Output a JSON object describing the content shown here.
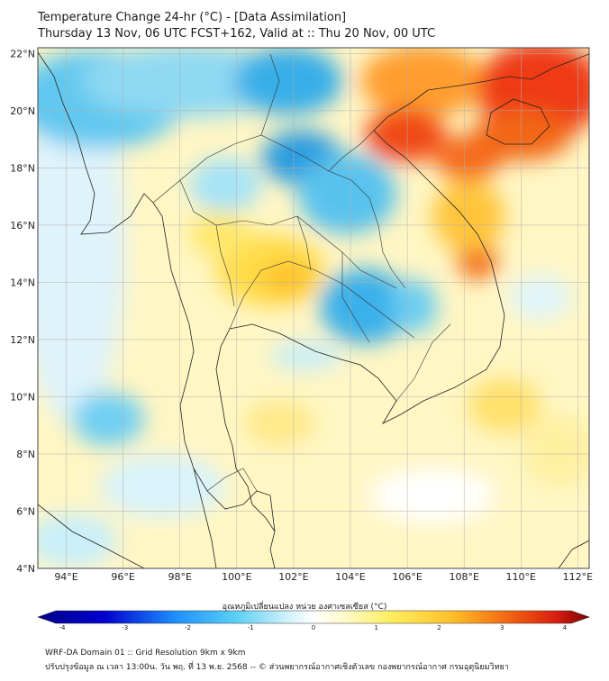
{
  "title_line1": "Temperature Change 24-hr (°C) - [Data Assimilation]",
  "title_line2": "Thursday 13 Nov, 06 UTC FCST+162, Valid at :: Thu 20 Nov, 00 UTC",
  "lat_labels": [
    "22°N",
    "20°N",
    "18°N",
    "16°N",
    "14°N",
    "12°N",
    "10°N",
    "8°N",
    "6°N",
    "4°N"
  ],
  "lon_labels": [
    "94°E",
    "96°E",
    "98°E",
    "100°E",
    "102°E",
    "104°E",
    "106°E",
    "108°E",
    "110°E",
    "112°E"
  ],
  "colorbar": {
    "label": "อุณหภูมิเปลี่ยนแปลง หน่วย องศาเซลเซียส (°C)",
    "ticks": [
      "-4",
      "-3",
      "-2",
      "-1",
      "0",
      "1",
      "2",
      "3",
      "4"
    ],
    "range": [
      -4,
      4
    ]
  },
  "footer_line1": "WRF-DA Domain 01 :: Grid Resolution 9km x 9km",
  "footer_line2": "ปรับปรุงข้อมูล ณ เวลา 13:00น. วัน พฤ. ที่ 13 พ.ย. 2568 -- © ส่วนพยากรณ์อากาศเชิงตัวเลข กองพยากรณ์อากาศ กรมอุตุนิยมวิทยา",
  "colors": {
    "cold": "#1e90ff",
    "neutral": "#ffffff",
    "warm": "#ffd740",
    "hot": "#e53a10"
  }
}
